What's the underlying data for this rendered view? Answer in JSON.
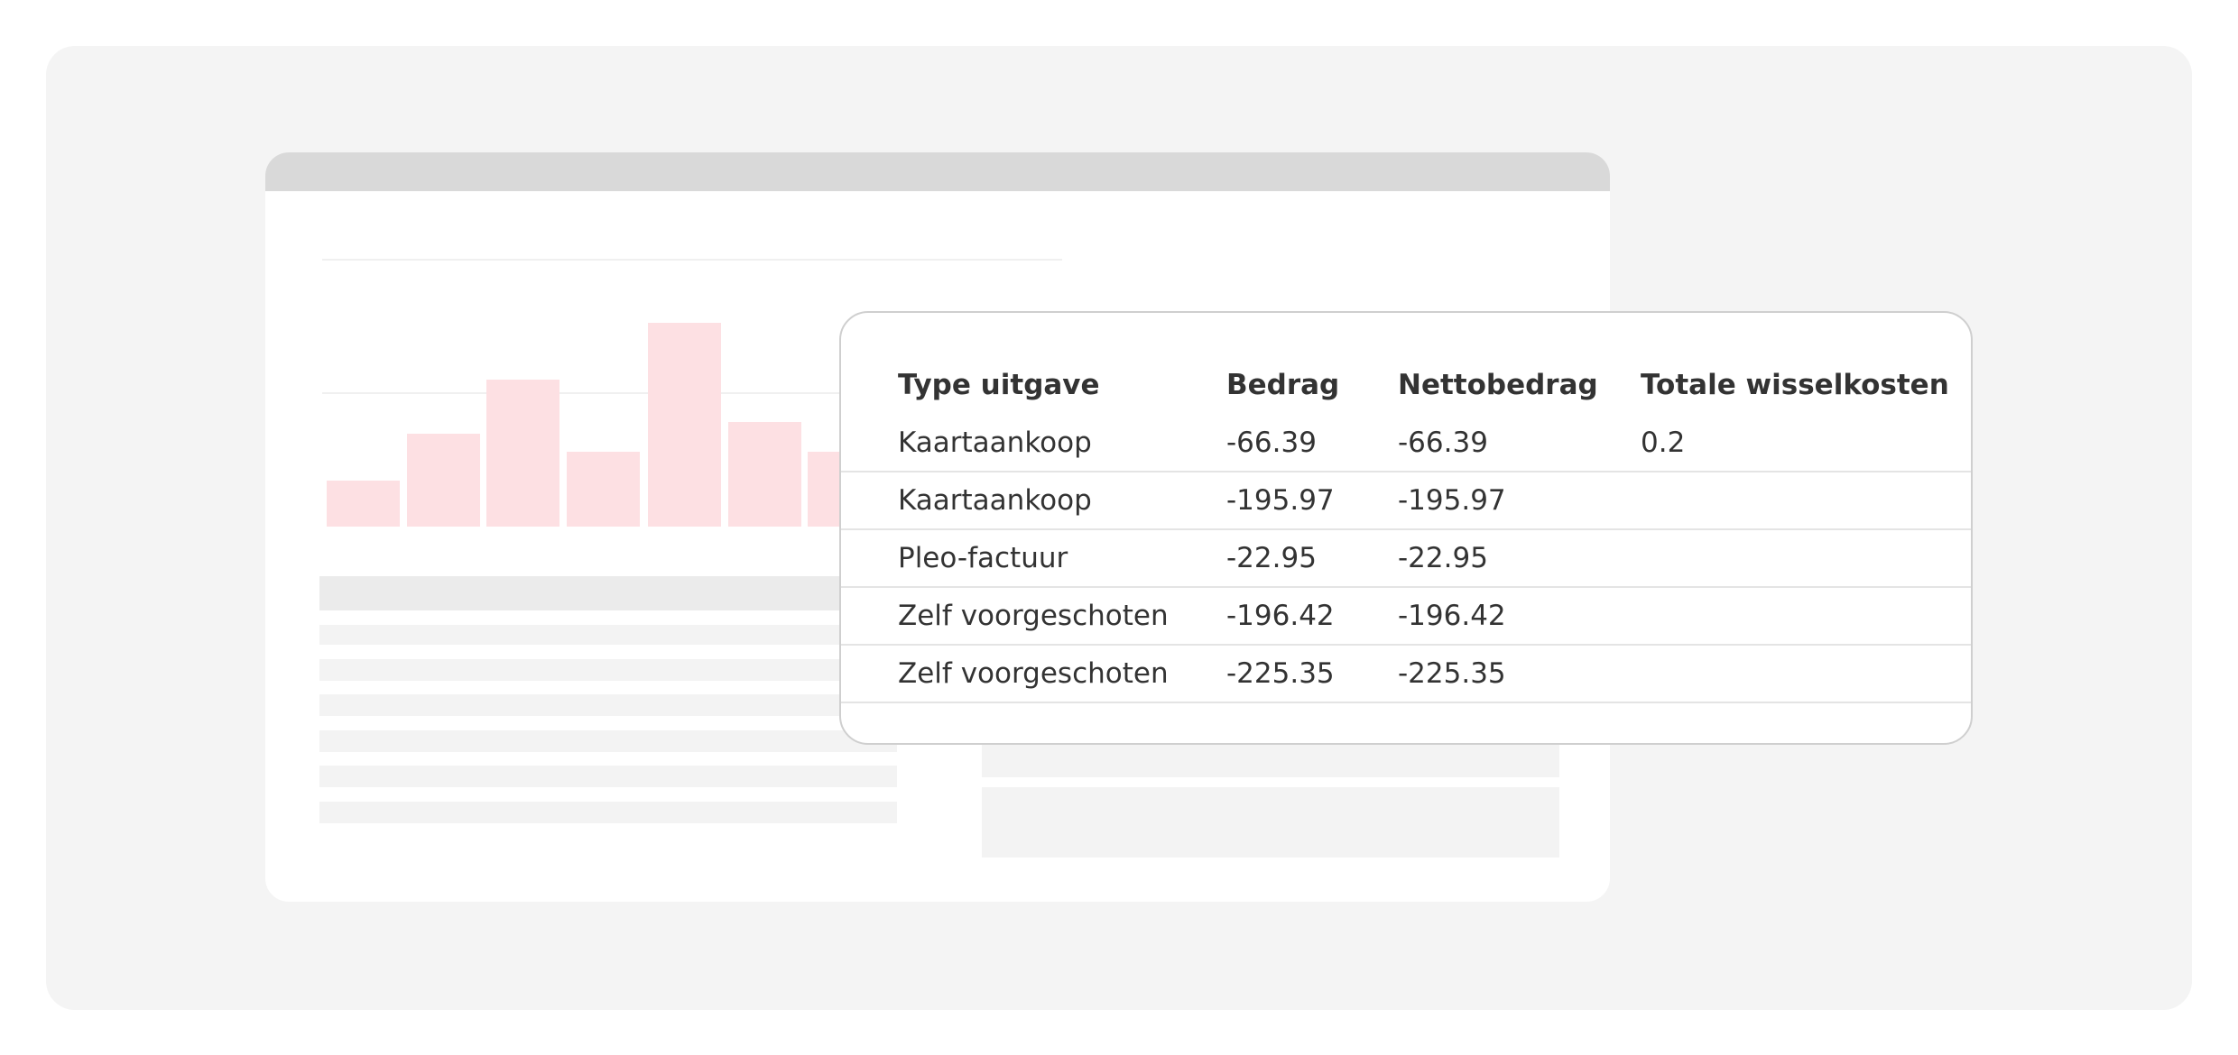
{
  "table": {
    "header": [
      "Type uitgave",
      "Bedrag",
      "Nettobedrag",
      "Totale wisselkosten"
    ],
    "rows": [
      [
        "Kaartaankoop",
        "-66.39",
        "-66.39",
        "0.2"
      ],
      [
        "Kaartaankoop",
        "-195.97",
        "-195.97"
      ],
      [
        "Pleo-factuur",
        "-22.95",
        "-22.95"
      ],
      [
        "Zelf voorgeschoten",
        "-196.42",
        "-196.42"
      ],
      [
        "Zelf voorgeschoten",
        "-225.35",
        "-225.35"
      ]
    ]
  }
}
